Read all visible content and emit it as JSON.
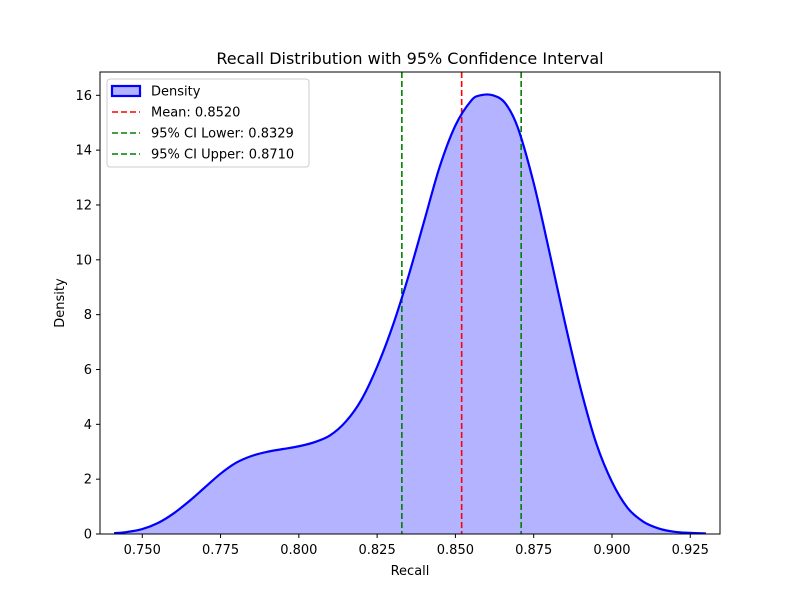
{
  "chart_data": {
    "type": "area",
    "title": "Recall Distribution with 95% Confidence Interval",
    "xlabel": "Recall",
    "ylabel": "Density",
    "xlim": [
      0.7365,
      0.9345
    ],
    "ylim": [
      0,
      16.85
    ],
    "xticks": [
      "0.750",
      "0.775",
      "0.800",
      "0.825",
      "0.850",
      "0.875",
      "0.900",
      "0.925"
    ],
    "xtick_values": [
      0.75,
      0.775,
      0.8,
      0.825,
      0.85,
      0.875,
      0.9,
      0.925
    ],
    "yticks": [
      "0",
      "2",
      "4",
      "6",
      "8",
      "10",
      "12",
      "14",
      "16"
    ],
    "ytick_values": [
      0,
      2,
      4,
      6,
      8,
      10,
      12,
      14,
      16
    ],
    "grid": false,
    "legend_position": "upper-left",
    "series": [
      {
        "name": "Density",
        "kind": "kde-area",
        "color": "#0000ff",
        "fill_color": "#b3b3ff",
        "x": [
          0.741,
          0.745,
          0.75,
          0.755,
          0.76,
          0.765,
          0.77,
          0.775,
          0.78,
          0.785,
          0.79,
          0.795,
          0.8,
          0.805,
          0.81,
          0.815,
          0.82,
          0.825,
          0.83,
          0.835,
          0.84,
          0.845,
          0.85,
          0.855,
          0.858,
          0.862,
          0.866,
          0.87,
          0.875,
          0.88,
          0.885,
          0.89,
          0.895,
          0.9,
          0.905,
          0.91,
          0.915,
          0.92,
          0.925,
          0.93
        ],
        "y": [
          0.03,
          0.07,
          0.18,
          0.4,
          0.75,
          1.2,
          1.7,
          2.2,
          2.6,
          2.85,
          3.0,
          3.1,
          3.2,
          3.35,
          3.6,
          4.1,
          4.9,
          6.1,
          7.6,
          9.4,
          11.4,
          13.4,
          14.9,
          15.8,
          16.0,
          16.0,
          15.7,
          14.8,
          12.8,
          10.3,
          7.7,
          5.3,
          3.3,
          1.9,
          0.95,
          0.45,
          0.2,
          0.08,
          0.04,
          0.02
        ]
      }
    ],
    "vlines": [
      {
        "name": "Mean: 0.8520",
        "x": 0.852,
        "color": "#ff0000",
        "style": "dashed"
      },
      {
        "name": "95% CI Lower: 0.8329",
        "x": 0.8329,
        "color": "#008000",
        "style": "dashed"
      },
      {
        "name": "95% CI Upper: 0.8710",
        "x": 0.871,
        "color": "#008000",
        "style": "dashed"
      }
    ],
    "legend": [
      "Density",
      "Mean: 0.8520",
      "95% CI Lower: 0.8329",
      "95% CI Upper: 0.8710"
    ]
  }
}
